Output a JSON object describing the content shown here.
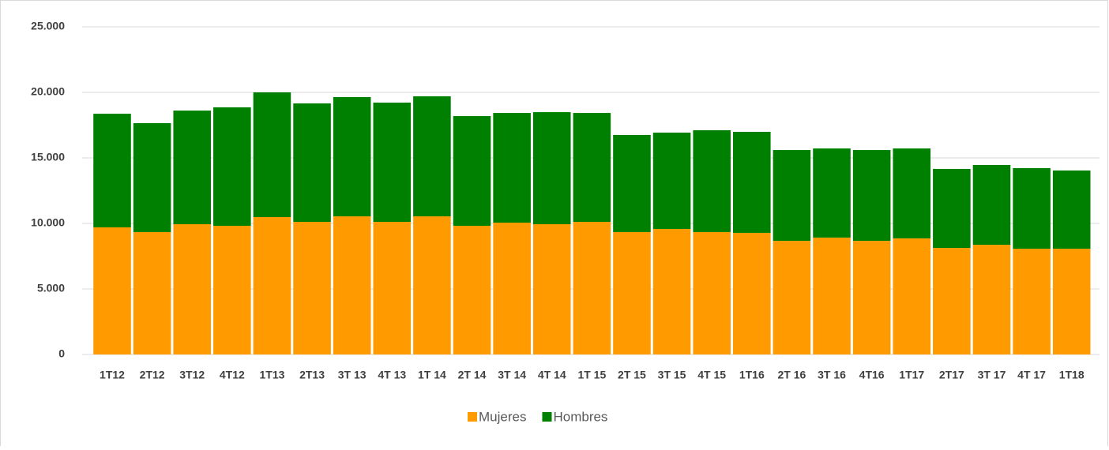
{
  "chart_data": {
    "type": "stacked_bar",
    "categories": [
      "1T12",
      "2T12",
      "3T12",
      "4T12",
      "1T13",
      "2T13",
      "3T 13",
      "4T 13",
      "1T 14",
      "2T 14",
      "3T 14",
      "4T 14",
      "1T 15",
      "2T 15",
      "3T 15",
      "4T 15",
      "1T16",
      "2T 16",
      "3T 16",
      "4T16",
      "1T17",
      "2T17",
      "3T 17",
      "4T 17",
      "1T18"
    ],
    "series": [
      {
        "name": "Mujeres",
        "color": "#ff9a00",
        "values": [
          9700,
          9340,
          9940,
          9820,
          10480,
          10120,
          10540,
          10120,
          10540,
          9820,
          10060,
          9940,
          10120,
          9340,
          9580,
          9340,
          9280,
          8670,
          8920,
          8670,
          8860,
          8130,
          8370,
          8070,
          8070
        ]
      },
      {
        "name": "Hombres",
        "color": "#008000",
        "values": [
          8670,
          8310,
          8670,
          9040,
          9520,
          9040,
          9100,
          9100,
          9160,
          8370,
          8370,
          8550,
          8310,
          7410,
          7350,
          7770,
          7710,
          6930,
          6800,
          6930,
          6860,
          6030,
          6090,
          6150,
          5970
        ]
      }
    ],
    "ylim": [
      0,
      25000
    ],
    "yticks": [
      0,
      {
        "value": 5000,
        "label": "5.000"
      },
      {
        "value": 10000,
        "label": "10.000"
      },
      {
        "value": 15000,
        "label": "15.000"
      },
      {
        "value": 20000,
        "label": "20.000"
      },
      {
        "value": 25000,
        "label": "25.000"
      }
    ],
    "grid": true,
    "legend": "bottom"
  }
}
